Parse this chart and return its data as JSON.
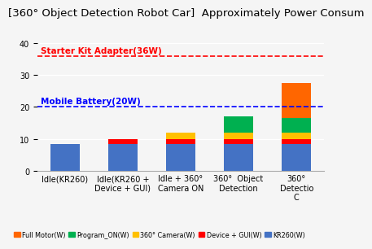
{
  "title": "[360° Object Detection Robot Car]  Approximately Power Consum",
  "categories": [
    "Idle(KR260)",
    "Idle(KR260 +\nDevice + GUI)",
    "Idle + 360°\nCamera ON",
    "360°  Object\nDetection",
    "360°\nDetectio\nC"
  ],
  "kr260_values": [
    8.3,
    8.5,
    8.5,
    8.5,
    8.5
  ],
  "device_gui_values": [
    0.0,
    1.5,
    1.5,
    1.5,
    1.5
  ],
  "camera_values": [
    0.0,
    0.0,
    2.0,
    2.0,
    2.0
  ],
  "program_on_values": [
    0.0,
    0.0,
    0.0,
    5.0,
    4.5
  ],
  "motor_values": [
    0.0,
    0.0,
    0.0,
    0.0,
    11.0
  ],
  "colors": {
    "kr260": "#4472C4",
    "device_gui": "#FF0000",
    "camera": "#FFC000",
    "program_on": "#00B050",
    "motor": "#FF6600"
  },
  "hline_36": 36,
  "hline_20": 20,
  "hline_36_color": "#FF0000",
  "hline_20_color": "#0000FF",
  "hline_36_label": "Starter Kit Adapter(36W)",
  "hline_20_label": "Mobile Battery(20W)",
  "ylim": [
    0,
    42
  ],
  "yticks": [
    0,
    10,
    20,
    30,
    40
  ],
  "legend_labels": [
    "Full Motor(W)",
    "Program_ON(W)",
    "360° Camera(W)",
    "Device + GUI(W)",
    "KR260(W)"
  ],
  "legend_colors": [
    "#FF6600",
    "#00B050",
    "#FFC000",
    "#FF0000",
    "#4472C4"
  ],
  "background_color": "#F5F5F5",
  "title_fontsize": 9.5,
  "axis_fontsize": 7.0
}
